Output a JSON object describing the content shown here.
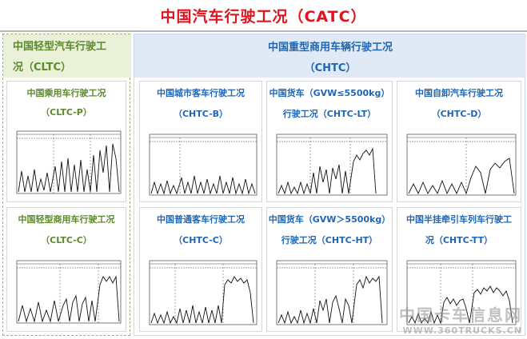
{
  "title": "中国汽车行驶工况（CATC）",
  "left": {
    "header_line1": "中国轻型汽车行驶工",
    "header_line2": "况（CLTC）",
    "cells": [
      {
        "line1": "中国乘用车行驶工况",
        "line2": "（CLTC-P）"
      },
      {
        "line1": "中国轻型商用车行驶工况",
        "line2": "（CLTC-C）"
      }
    ]
  },
  "right": {
    "header_line1": "中国重型商用车辆行驶工况",
    "header_line2": "（CHTC）",
    "cells": [
      {
        "line1": "中国城市客车行驶工况",
        "line2": "（CHTC-B）"
      },
      {
        "line1": "中国货车（GVW≤5500kg）",
        "line2": "行驶工况（CHTC-LT）"
      },
      {
        "line1": "中国自卸汽车行驶工况",
        "line2": "（CHTC-D）"
      },
      {
        "line1": "中国普通客车行驶工况",
        "line2": "（CHTC-C）"
      },
      {
        "line1": "中国货车（GVW＞5500kg）",
        "line2": "行驶工况（CHTC-HT）"
      },
      {
        "line1": "中国半挂牵引车列车行驶工",
        "line2": "况（CHTC-TT）"
      }
    ]
  },
  "watermark": {
    "line1": "中国卡车信息网",
    "line2": "WWW.360TRUCKS.CN"
  },
  "colors": {
    "title": "#e0141e",
    "green": "#5b8a2a",
    "blue": "#1f66b5"
  }
}
